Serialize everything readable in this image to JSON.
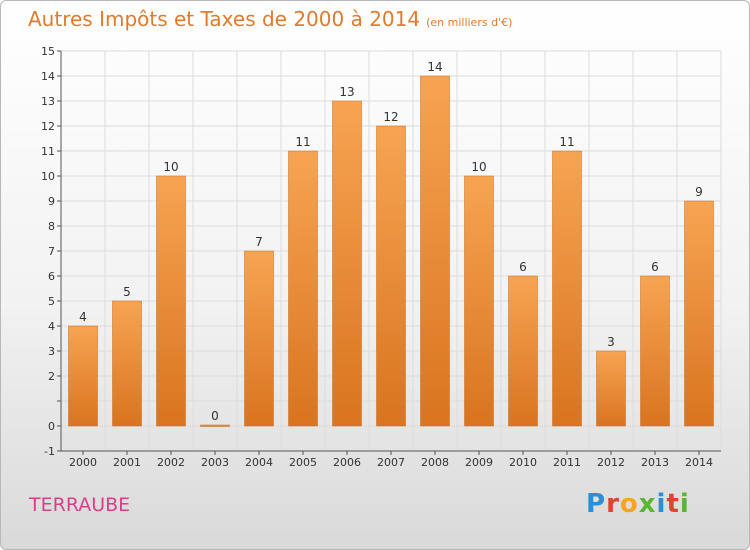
{
  "header": {
    "title": "Autres Impôts et Taxes de 2000 à 2014",
    "unit": "(en milliers d'€)"
  },
  "footer": {
    "commune": "TERRAUBE",
    "logo": "Proxiti"
  },
  "colors": {
    "bar_light": "#f7a452",
    "bar_dark": "#d9741f",
    "title": "#e07a2e",
    "commune": "#d8408a",
    "logo_letters": [
      "#2a8fd6",
      "#e0432e",
      "#f4a51d",
      "#5bb531",
      "#2a8fd6",
      "#e0432e",
      "#5bb531"
    ]
  },
  "chart_data": {
    "type": "bar",
    "categories": [
      "2000",
      "2001",
      "2002",
      "2003",
      "2004",
      "2005",
      "2006",
      "2007",
      "2008",
      "2009",
      "2010",
      "2011",
      "2012",
      "2013",
      "2014"
    ],
    "values": [
      4,
      5,
      10,
      0,
      7,
      11,
      13,
      12,
      14,
      10,
      6,
      11,
      3,
      6,
      9
    ],
    "data_labels": [
      "4",
      "5",
      "10",
      "0",
      "7",
      "11",
      "13",
      "12",
      "14",
      "10",
      "6",
      "11",
      "3",
      "6",
      "9"
    ],
    "ylim": [
      -1,
      15
    ],
    "yticks": [
      -1,
      0,
      1,
      2,
      3,
      4,
      5,
      6,
      7,
      8,
      9,
      10,
      11,
      12,
      13,
      14,
      15
    ],
    "ytick_labels": [
      "-1",
      "0",
      "",
      "2",
      "3",
      "4",
      "5",
      "6",
      "7",
      "8",
      "9",
      "10",
      "11",
      "12",
      "13",
      "14",
      "15"
    ],
    "grid": true
  }
}
